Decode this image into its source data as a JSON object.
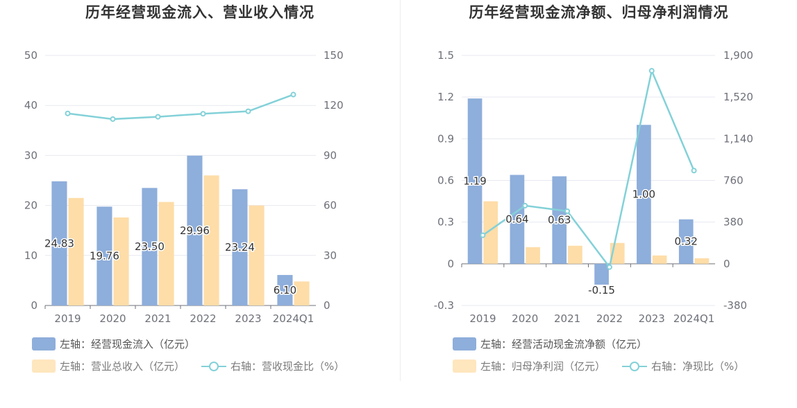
{
  "colors": {
    "bar_primary": "#8eaedb",
    "bar_secondary": "#fedda8",
    "line": "#83d1d8",
    "grid": "#e6e9f0",
    "axis_text": "#6e7079",
    "label_text": "#333333"
  },
  "chart_data": [
    {
      "type": "bar",
      "title": "历年经营现金流入、营业收入情况",
      "categories": [
        "2019",
        "2020",
        "2021",
        "2022",
        "2023",
        "2024Q1"
      ],
      "left_axis": {
        "ylim": [
          0,
          50
        ],
        "ticks": [
          "0",
          "10",
          "20",
          "30",
          "40",
          "50"
        ]
      },
      "right_axis": {
        "ylim": [
          0,
          150
        ],
        "ticks": [
          "0",
          "30",
          "60",
          "90",
          "120",
          "150"
        ]
      },
      "series": [
        {
          "name": "左轴：经营现金流入（亿元）",
          "type": "bar",
          "axis": "left",
          "values": [
            24.83,
            19.76,
            23.5,
            29.96,
            23.24,
            6.1
          ],
          "labels": [
            "24.83",
            "19.76",
            "23.50",
            "29.96",
            "23.24",
            "6.10"
          ]
        },
        {
          "name": "左轴：营业总收入（亿元）",
          "type": "bar",
          "axis": "left",
          "values": [
            21.5,
            17.6,
            20.7,
            26.0,
            20.0,
            4.8
          ]
        },
        {
          "name": "右轴：营收现金比（%）",
          "type": "line",
          "axis": "right",
          "values": [
            115.2,
            111.8,
            113.2,
            115.0,
            116.5,
            126.5
          ]
        }
      ],
      "legend": [
        {
          "label": "左轴：经营现金流入（亿元）",
          "kind": "bar-primary"
        },
        {
          "label": "左轴：营业总收入（亿元）",
          "kind": "bar-secondary"
        },
        {
          "label": "右轴：营收现金比（%）",
          "kind": "line"
        }
      ]
    },
    {
      "type": "bar",
      "title": "历年经营现金流净额、归母净利润情况",
      "categories": [
        "2019",
        "2020",
        "2021",
        "2022",
        "2023",
        "2024Q1"
      ],
      "left_axis": {
        "ylim": [
          -0.3,
          1.5
        ],
        "ticks": [
          "-0.3",
          "0",
          "0.3",
          "0.6",
          "0.9",
          "1.2",
          "1.5"
        ]
      },
      "right_axis": {
        "ylim": [
          -380,
          1900
        ],
        "ticks": [
          "-380",
          "0",
          "380",
          "760",
          "1,140",
          "1,520",
          "1,900"
        ]
      },
      "series": [
        {
          "name": "左轴：经营活动现金流净额（亿元）",
          "type": "bar",
          "axis": "left",
          "values": [
            1.19,
            0.64,
            0.63,
            -0.15,
            1.0,
            0.32
          ],
          "labels": [
            "1.19",
            "0.64",
            "0.63",
            "-0.15",
            "1.00",
            "0.32"
          ]
        },
        {
          "name": "左轴：归母净利润（亿元）",
          "type": "bar",
          "axis": "left",
          "values": [
            0.45,
            0.12,
            0.13,
            0.15,
            0.06,
            0.04
          ]
        },
        {
          "name": "右轴：净现比（%）",
          "type": "line",
          "axis": "right",
          "values": [
            260,
            530,
            480,
            -30,
            1760,
            850
          ]
        }
      ],
      "legend": [
        {
          "label": "左轴：经营活动现金流净额（亿元）",
          "kind": "bar-primary"
        },
        {
          "label": "左轴：归母净利润（亿元）",
          "kind": "bar-secondary"
        },
        {
          "label": "右轴：净现比（%）",
          "kind": "line"
        }
      ]
    }
  ]
}
